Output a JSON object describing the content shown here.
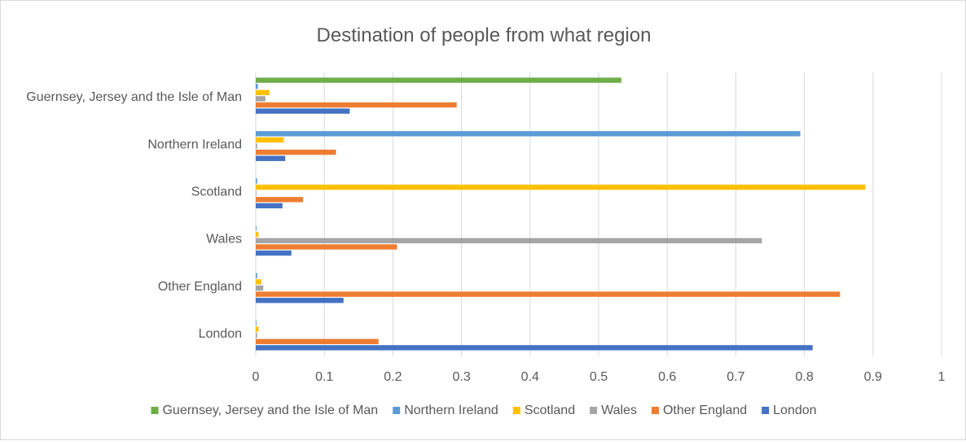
{
  "chart_data": {
    "type": "bar",
    "orientation": "horizontal",
    "title": "Destination of people from what region",
    "xlabel": "",
    "ylabel": "",
    "xlim": [
      0,
      1
    ],
    "x_ticks": [
      "0",
      "0.1",
      "0.2",
      "0.3",
      "0.4",
      "0.5",
      "0.6",
      "0.7",
      "0.8",
      "0.9",
      "1"
    ],
    "grid": "vertical",
    "legend_position": "bottom",
    "categories": [
      "London",
      "Other England",
      "Wales",
      "Scotland",
      "Northern Ireland",
      "Guernsey, Jersey and the Isle of Man"
    ],
    "series": [
      {
        "name": "London",
        "color": "#4472c4",
        "values": [
          0.812,
          0.128,
          0.052,
          0.039,
          0.043,
          0.137
        ]
      },
      {
        "name": "Other England",
        "color": "#ed7d31",
        "values": [
          0.179,
          0.852,
          0.206,
          0.069,
          0.117,
          0.293
        ]
      },
      {
        "name": "Wales",
        "color": "#a5a5a5",
        "values": [
          0.002,
          0.011,
          0.738,
          0.001,
          0.002,
          0.014
        ]
      },
      {
        "name": "Scotland",
        "color": "#ffc000",
        "values": [
          0.004,
          0.008,
          0.004,
          0.889,
          0.041,
          0.02
        ]
      },
      {
        "name": "Northern Ireland",
        "color": "#5b9bd5",
        "values": [
          0.001,
          0.002,
          0.001,
          0.002,
          0.794,
          0.003
        ]
      },
      {
        "name": "Guernsey, Jersey and the Isle of Man",
        "color": "#70ad47",
        "values": [
          0.0,
          0.0,
          0.0,
          0.0,
          0.0,
          0.533
        ]
      }
    ],
    "legend_order": [
      "Guernsey, Jersey and the Isle of Man",
      "Northern Ireland",
      "Scotland",
      "Wales",
      "Other England",
      "London"
    ]
  }
}
